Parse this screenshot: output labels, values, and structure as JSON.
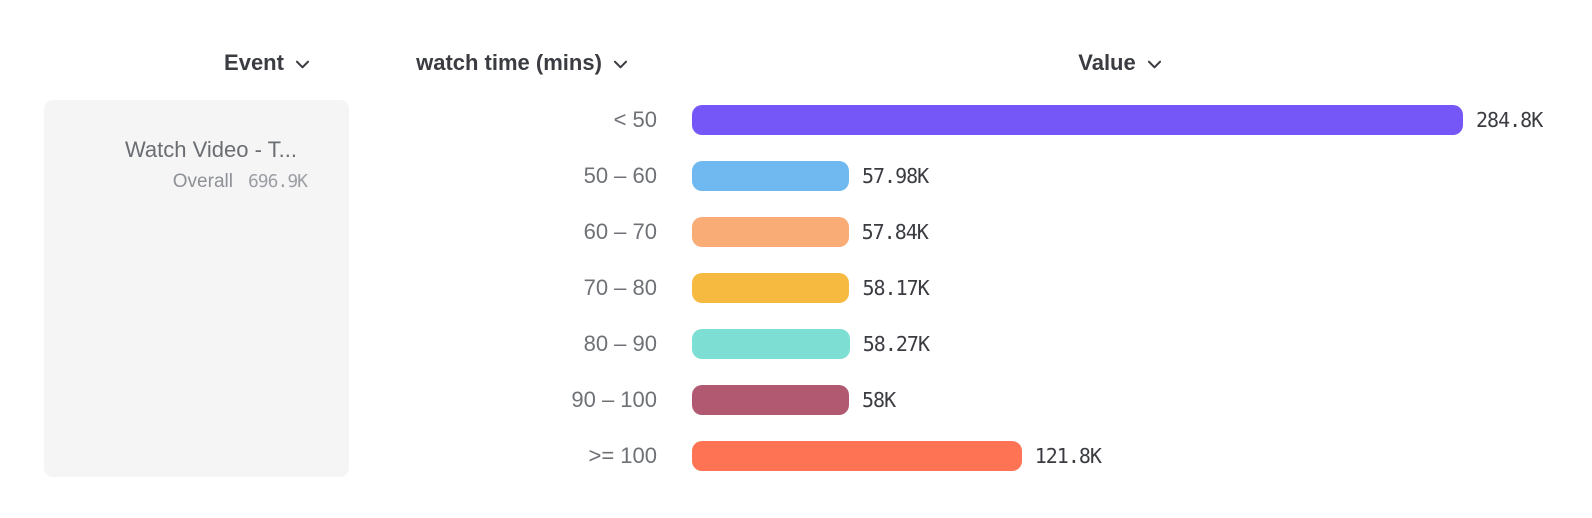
{
  "headers": {
    "event": {
      "label": "Event"
    },
    "breakdown": {
      "label": "watch time (mins)"
    },
    "value": {
      "label": "Value"
    }
  },
  "event_card": {
    "title": "Watch Video - T...",
    "overall_label": "Overall",
    "overall_value": "696.9K"
  },
  "chart_data": {
    "type": "bar",
    "orientation": "horizontal",
    "title": "",
    "xlabel": "Value",
    "ylabel": "watch time (mins)",
    "categories": [
      "< 50",
      "50 – 60",
      "60 – 70",
      "70 – 80",
      "80 – 90",
      "90 – 100",
      ">= 100"
    ],
    "values_thousands": [
      284.8,
      57.98,
      57.84,
      58.17,
      58.27,
      58,
      121.8
    ],
    "value_labels": [
      "284.8K",
      "57.98K",
      "57.84K",
      "58.17K",
      "58.27K",
      "58K",
      "121.8K"
    ],
    "bar_colors": [
      "#7557f7",
      "#6fb9f0",
      "#faac77",
      "#f6ba41",
      "#7ddfd3",
      "#b05971",
      "#fd7354"
    ],
    "xlim": [
      0,
      284.8
    ],
    "grid": false,
    "legend": "none"
  },
  "icons": {
    "chevron_down": "chevron-down"
  }
}
